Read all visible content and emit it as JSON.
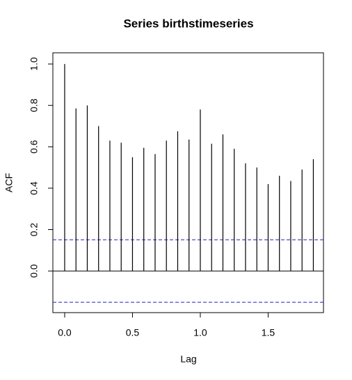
{
  "chart_data": {
    "type": "acf",
    "title": "Series  birthstimeseries",
    "x_label": "Lag",
    "y_label": "ACF",
    "x": [
      0,
      0.0833,
      0.1667,
      0.25,
      0.3333,
      0.4167,
      0.5,
      0.5833,
      0.6667,
      0.75,
      0.8333,
      0.9167,
      1.0,
      1.0833,
      1.1667,
      1.25,
      1.3333,
      1.4167,
      1.5,
      1.5833,
      1.6667,
      1.75,
      1.8333
    ],
    "values": [
      1.0,
      0.785,
      0.8,
      0.7,
      0.63,
      0.62,
      0.55,
      0.595,
      0.565,
      0.63,
      0.675,
      0.635,
      0.78,
      0.615,
      0.66,
      0.59,
      0.52,
      0.5,
      0.42,
      0.46,
      0.435,
      0.49,
      0.54
    ],
    "color": "#000000",
    "ci_lines": [
      0.151,
      -0.151
    ],
    "ci_color": "#1f1fbf",
    "xlim": [
      -0.087,
      1.908
    ],
    "ylim": [
      -0.201,
      1.054
    ],
    "xticks": [
      {
        "value": 0,
        "label": "0.0"
      },
      0.5,
      {
        "value": 1,
        "label": "1.0"
      },
      1.5
    ],
    "yticks": [
      {
        "value": 0,
        "label": "0.0"
      },
      0.2,
      0.4,
      0.6,
      0.8,
      {
        "value": 1,
        "label": "1.0"
      }
    ]
  }
}
